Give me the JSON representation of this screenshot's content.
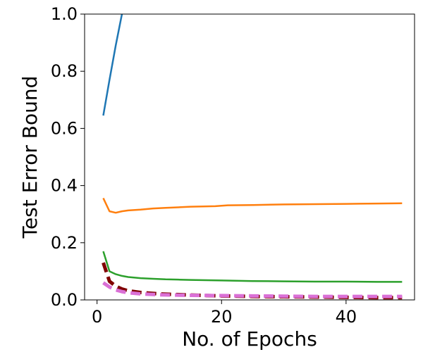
{
  "chart_data": {
    "type": "line",
    "title": "",
    "xlabel": "No. of Epochs",
    "ylabel": "Test Error Bound",
    "xlim": [
      -2,
      51
    ],
    "ylim": [
      0,
      1.0
    ],
    "xticks": [
      0,
      20,
      40
    ],
    "yticks": [
      0.0,
      0.2,
      0.4,
      0.6,
      0.8,
      1.0
    ],
    "xtick_labels": [
      "0",
      "20",
      "40"
    ],
    "ytick_labels": [
      "0.0",
      "0.2",
      "0.4",
      "0.6",
      "0.8",
      "1.0"
    ],
    "grid": false,
    "legend": "none",
    "series": [
      {
        "color": "#1f77b4",
        "width": 2.5,
        "dash": "",
        "x": [
          1,
          2,
          3,
          4,
          5
        ],
        "y": [
          0.645,
          0.77,
          0.89,
          1.0,
          1.1
        ]
      },
      {
        "color": "#ff7f0e",
        "width": 2.5,
        "dash": "",
        "x": [
          1,
          2,
          3,
          4,
          5,
          7,
          9,
          11,
          13,
          15,
          17,
          19,
          21,
          25,
          30,
          35,
          40,
          45,
          49
        ],
        "y": [
          0.356,
          0.31,
          0.305,
          0.31,
          0.313,
          0.316,
          0.32,
          0.322,
          0.324,
          0.326,
          0.327,
          0.328,
          0.331,
          0.332,
          0.334,
          0.335,
          0.336,
          0.337,
          0.338
        ]
      },
      {
        "color": "#2ca02c",
        "width": 2.5,
        "dash": "",
        "x": [
          1,
          2,
          3,
          4,
          5,
          7,
          9,
          11,
          13,
          15,
          20,
          25,
          30,
          35,
          40,
          45,
          49
        ],
        "y": [
          0.17,
          0.1,
          0.09,
          0.084,
          0.08,
          0.076,
          0.074,
          0.072,
          0.071,
          0.07,
          0.068,
          0.066,
          0.065,
          0.064,
          0.064,
          0.063,
          0.063
        ]
      },
      {
        "color": "#800000",
        "width": 5,
        "dash": "14 7",
        "x": [
          1,
          2,
          3,
          4,
          5,
          7,
          10,
          15,
          20,
          25,
          30,
          35,
          40,
          45,
          49
        ],
        "y": [
          0.13,
          0.065,
          0.048,
          0.038,
          0.032,
          0.026,
          0.021,
          0.017,
          0.014,
          0.012,
          0.011,
          0.01,
          0.009,
          0.008,
          0.008
        ]
      },
      {
        "color": "#da70d6",
        "width": 5,
        "dash": "14 7",
        "x": [
          1,
          2,
          3,
          4,
          5,
          7,
          10,
          15,
          20,
          25,
          30,
          35,
          40,
          45,
          49
        ],
        "y": [
          0.06,
          0.045,
          0.035,
          0.029,
          0.025,
          0.021,
          0.018,
          0.016,
          0.015,
          0.014,
          0.013,
          0.012,
          0.012,
          0.012,
          0.012
        ]
      }
    ]
  }
}
